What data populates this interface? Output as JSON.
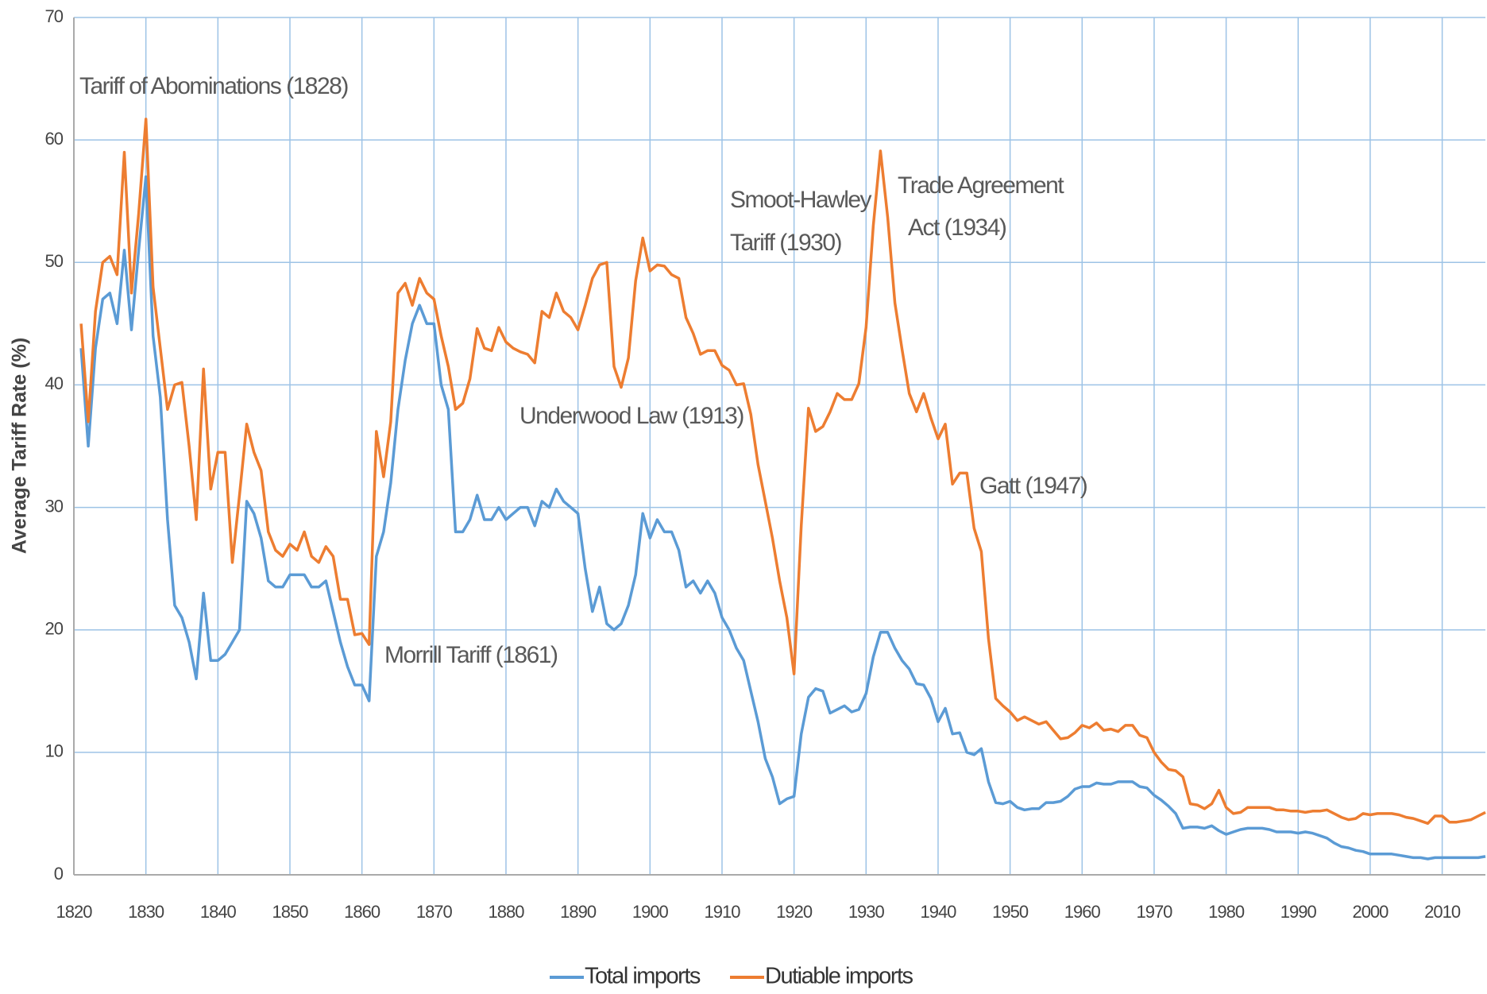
{
  "chart_data": {
    "type": "line",
    "y_label": "Average Tariff Rate (%)",
    "annotations": [
      "Tariff of Abominations (1828)",
      "Smoot-Hawley",
      "Tariff (1930)",
      "Trade Agreement",
      "Act (1934)",
      "Underwood  Law (1913)",
      "Gatt (1947)",
      "Morrill Tariff  (1861)"
    ],
    "x": [
      1821,
      1822,
      1823,
      1824,
      1825,
      1826,
      1827,
      1828,
      1829,
      1830,
      1831,
      1832,
      1833,
      1834,
      1835,
      1836,
      1837,
      1838,
      1839,
      1840,
      1841,
      1842,
      1843,
      1844,
      1845,
      1846,
      1847,
      1848,
      1849,
      1850,
      1851,
      1852,
      1853,
      1854,
      1855,
      1856,
      1857,
      1858,
      1859,
      1860,
      1861,
      1862,
      1863,
      1864,
      1865,
      1866,
      1867,
      1868,
      1869,
      1870,
      1871,
      1872,
      1873,
      1874,
      1875,
      1876,
      1877,
      1878,
      1879,
      1880,
      1881,
      1882,
      1883,
      1884,
      1885,
      1886,
      1887,
      1888,
      1889,
      1890,
      1891,
      1892,
      1893,
      1894,
      1895,
      1896,
      1897,
      1898,
      1899,
      1900,
      1901,
      1902,
      1903,
      1904,
      1905,
      1906,
      1907,
      1908,
      1909,
      1910,
      1911,
      1912,
      1913,
      1914,
      1915,
      1916,
      1917,
      1918,
      1919,
      1920,
      1921,
      1922,
      1923,
      1924,
      1925,
      1926,
      1927,
      1928,
      1929,
      1930,
      1931,
      1932,
      1933,
      1934,
      1935,
      1936,
      1937,
      1938,
      1939,
      1940,
      1941,
      1942,
      1943,
      1944,
      1945,
      1946,
      1947,
      1948,
      1949,
      1950,
      1951,
      1952,
      1953,
      1954,
      1955,
      1956,
      1957,
      1958,
      1959,
      1960,
      1961,
      1962,
      1963,
      1964,
      1965,
      1966,
      1967,
      1968,
      1969,
      1970,
      1971,
      1972,
      1973,
      1974,
      1975,
      1976,
      1977,
      1978,
      1979,
      1980,
      1981,
      1982,
      1983,
      1984,
      1985,
      1986,
      1987,
      1988,
      1989,
      1990,
      1991,
      1992,
      1993,
      1994,
      1995,
      1996,
      1997,
      1998,
      1999,
      2000,
      2001,
      2002,
      2003,
      2004,
      2005,
      2006,
      2007,
      2008,
      2009,
      2010,
      2011,
      2012,
      2013,
      2014,
      2015,
      2016
    ],
    "series": [
      {
        "name": "Total imports",
        "color": "#5b9bd5",
        "values": [
          43,
          35,
          43,
          47,
          47.5,
          45,
          51,
          44.5,
          51,
          57,
          44,
          39,
          29,
          22,
          21,
          19,
          16,
          23,
          17.5,
          17.5,
          18,
          19,
          20,
          30.5,
          29.5,
          27.5,
          24,
          23.5,
          23.5,
          24.5,
          24.5,
          24.5,
          23.5,
          23.5,
          24,
          21.5,
          19,
          17,
          15.5,
          15.5,
          14.2,
          26,
          28,
          32,
          38,
          42,
          45,
          46.5,
          45,
          45,
          40,
          38,
          28,
          28,
          29,
          31,
          29,
          29,
          30,
          29,
          29.5,
          30,
          30,
          28.5,
          30.5,
          30,
          31.5,
          30.5,
          30,
          29.5,
          25,
          21.5,
          23.5,
          20.5,
          20,
          20.5,
          22,
          24.5,
          29.5,
          27.5,
          29,
          28,
          28,
          26.5,
          23.5,
          24,
          23,
          24,
          23,
          21,
          20,
          18.5,
          17.5,
          15,
          12.5,
          9.5,
          8,
          5.8,
          6.2,
          6.4,
          11.5,
          14.5,
          15.2,
          15,
          13.2,
          13.5,
          13.8,
          13.3,
          13.5,
          14.8,
          17.8,
          19.8,
          19.8,
          18.5,
          17.5,
          16.8,
          15.6,
          15.5,
          14.4,
          12.5,
          13.6,
          11.5,
          11.6,
          10,
          9.8,
          10.3,
          7.6,
          5.9,
          5.8,
          6,
          5.5,
          5.3,
          5.4,
          5.4,
          5.9,
          5.9,
          6,
          6.4,
          7,
          7.2,
          7.2,
          7.5,
          7.4,
          7.4,
          7.6,
          7.6,
          7.6,
          7.2,
          7.1,
          6.5,
          6.1,
          5.6,
          5,
          3.8,
          3.9,
          3.9,
          3.8,
          4,
          3.6,
          3.3,
          3.5,
          3.7,
          3.8,
          3.8,
          3.8,
          3.7,
          3.5,
          3.5,
          3.5,
          3.4,
          3.5,
          3.4,
          3.2,
          3,
          2.6,
          2.3,
          2.2,
          2,
          1.9,
          1.7,
          1.7,
          1.7,
          1.7,
          1.6,
          1.5,
          1.4,
          1.4,
          1.3,
          1.4,
          1.4,
          1.4,
          1.4,
          1.4,
          1.4,
          1.4,
          1.5
        ]
      },
      {
        "name": "Dutiable imports",
        "color": "#ed7d31",
        "values": [
          45,
          37,
          46,
          50,
          50.5,
          49,
          59,
          47.5,
          54,
          61.7,
          48,
          43,
          38,
          40,
          40.2,
          35,
          29,
          41.3,
          31.5,
          34.5,
          34.5,
          25.5,
          31,
          36.8,
          34.5,
          33,
          28,
          26.5,
          26,
          27,
          26.5,
          28,
          26,
          25.5,
          26.8,
          26,
          22.5,
          22.5,
          19.6,
          19.7,
          18.8,
          36.2,
          32.5,
          37,
          47.5,
          48.3,
          46.5,
          48.7,
          47.5,
          47,
          44,
          41.5,
          38,
          38.5,
          40.5,
          44.6,
          43,
          42.8,
          44.7,
          43.5,
          43,
          42.7,
          42.5,
          41.8,
          46,
          45.5,
          47.5,
          46,
          45.5,
          44.5,
          46.5,
          48.7,
          49.8,
          50,
          41.5,
          39.8,
          42.2,
          48.5,
          52,
          49.3,
          49.8,
          49.7,
          49,
          48.7,
          45.5,
          44.2,
          42.5,
          42.8,
          42.8,
          41.6,
          41.2,
          40,
          40.1,
          37.6,
          33.5,
          30.5,
          27.5,
          24,
          21,
          16.4,
          28.5,
          38.1,
          36.2,
          36.6,
          37.8,
          39.3,
          38.8,
          38.8,
          40.1,
          44.7,
          53,
          59.1,
          53.7,
          46.7,
          42.9,
          39.3,
          37.8,
          39.3,
          37.3,
          35.6,
          36.8,
          31.9,
          32.8,
          32.8,
          28.3,
          26.4,
          19.3,
          14.4,
          13.8,
          13.3,
          12.6,
          12.9,
          12.6,
          12.3,
          12.5,
          11.8,
          11.1,
          11.2,
          11.6,
          12.2,
          12,
          12.4,
          11.8,
          11.9,
          11.7,
          12.2,
          12.2,
          11.4,
          11.2,
          10,
          9.2,
          8.6,
          8.5,
          8,
          5.8,
          5.7,
          5.4,
          5.8,
          6.9,
          5.5,
          5,
          5.1,
          5.5,
          5.5,
          5.5,
          5.5,
          5.3,
          5.3,
          5.2,
          5.2,
          5.1,
          5.2,
          5.2,
          5.3,
          5,
          4.7,
          4.5,
          4.6,
          5,
          4.9,
          5,
          5,
          5,
          4.9,
          4.7,
          4.6,
          4.4,
          4.2,
          4.8,
          4.8,
          4.3,
          4.3,
          4.4,
          4.5,
          4.8,
          5.1
        ]
      }
    ],
    "xlim": [
      1820,
      2016
    ],
    "xticks": [
      1820,
      1830,
      1840,
      1850,
      1860,
      1870,
      1880,
      1890,
      1900,
      1910,
      1920,
      1930,
      1940,
      1950,
      1960,
      1970,
      1980,
      1990,
      2000,
      2010
    ],
    "ylim": [
      0,
      70
    ],
    "yticks": [
      0,
      10,
      20,
      30,
      40,
      50,
      60,
      70
    ],
    "grid": true,
    "legend": "bottom"
  }
}
